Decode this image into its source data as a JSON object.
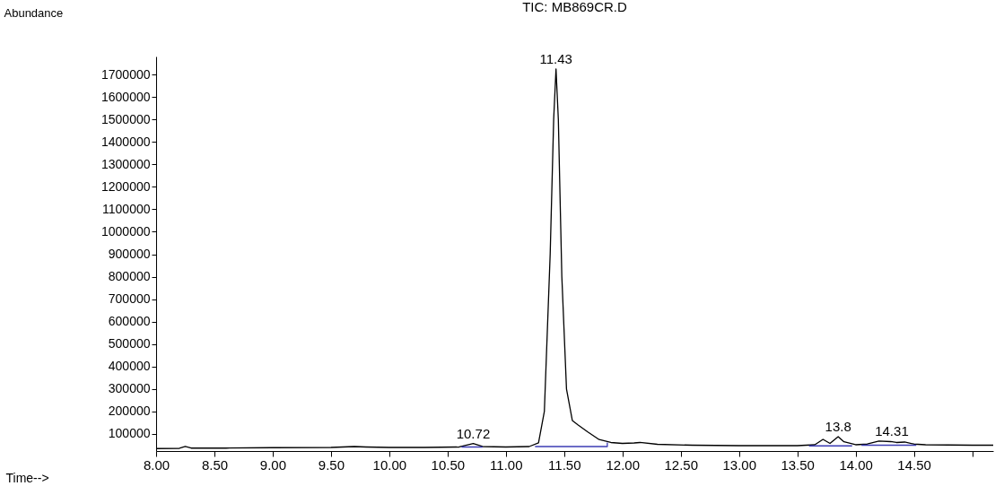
{
  "chart_data": {
    "type": "line",
    "title": "TIC: MB869CR.D",
    "xlabel": "Time-->",
    "ylabel": "Abundance",
    "xlim": [
      8.0,
      15.18
    ],
    "ylim": [
      24000,
      1780000
    ],
    "xticks": [
      {
        "value": 8.0,
        "label": "8.00"
      },
      {
        "value": 8.5,
        "label": "8.50"
      },
      {
        "value": 9.0,
        "label": "9.00"
      },
      {
        "value": 9.5,
        "label": "9.50"
      },
      {
        "value": 10.0,
        "label": "10.00"
      },
      {
        "value": 10.5,
        "label": "10.50"
      },
      {
        "value": 11.0,
        "label": "11.00"
      },
      {
        "value": 11.5,
        "label": "11.50"
      },
      {
        "value": 12.0,
        "label": "12.00"
      },
      {
        "value": 12.5,
        "label": "12.50"
      },
      {
        "value": 13.0,
        "label": "13.00"
      },
      {
        "value": 13.5,
        "label": "13.50"
      },
      {
        "value": 14.0,
        "label": "14.00"
      },
      {
        "value": 14.5,
        "label": "14.50"
      },
      {
        "value": 15.0,
        "label": null
      }
    ],
    "yticks": [
      100000,
      200000,
      300000,
      400000,
      500000,
      600000,
      700000,
      800000,
      900000,
      1000000,
      1100000,
      1200000,
      1300000,
      1400000,
      1500000,
      1600000,
      1700000
    ],
    "grid": false,
    "marker": "none",
    "line_style": "solid",
    "series": [
      {
        "color": "#000000",
        "x": [
          8.0,
          8.2,
          8.25,
          8.3,
          8.6,
          9.0,
          9.5,
          9.7,
          9.8,
          10.0,
          10.3,
          10.6,
          10.72,
          10.8,
          11.0,
          11.2,
          11.28,
          11.33,
          11.38,
          11.41,
          11.43,
          11.45,
          11.48,
          11.52,
          11.57,
          11.62,
          11.7,
          11.8,
          11.9,
          12.0,
          12.1,
          12.15,
          12.3,
          12.6,
          13.0,
          13.5,
          13.65,
          13.72,
          13.78,
          13.85,
          13.9,
          14.0,
          14.1,
          14.2,
          14.3,
          14.35,
          14.42,
          14.5,
          14.6,
          15.0,
          15.18
        ],
        "values": [
          35000,
          36000,
          44000,
          37000,
          37000,
          39000,
          40000,
          44000,
          42000,
          40000,
          40000,
          42000,
          57000,
          44000,
          42000,
          44000,
          60000,
          200000,
          900000,
          1500000,
          1725000,
          1500000,
          800000,
          300000,
          160000,
          140000,
          110000,
          75000,
          62000,
          58000,
          60000,
          62000,
          54000,
          50000,
          48000,
          48000,
          52000,
          76000,
          58000,
          88000,
          65000,
          52000,
          55000,
          68000,
          66000,
          62000,
          64000,
          55000,
          52000,
          50000,
          50000
        ]
      },
      {
        "color": "#3c3cb4",
        "x": [
          10.62,
          10.8,
          10.81,
          11.25,
          11.87,
          11.87,
          11.88,
          13.6,
          13.97,
          13.98,
          14.05,
          14.52
        ],
        "values": [
          42000,
          42000,
          null,
          44000,
          44000,
          62000,
          null,
          47000,
          47000,
          null,
          50000,
          50000
        ]
      }
    ],
    "annotations": [
      {
        "text": "11.43",
        "x": 11.43,
        "y": 1725000
      },
      {
        "text": "10.72",
        "x": 10.72,
        "y": 57000
      },
      {
        "text": "13.8",
        "x": 13.85,
        "y": 88000
      },
      {
        "text": "14.31",
        "x": 14.31,
        "y": 68000
      }
    ]
  }
}
